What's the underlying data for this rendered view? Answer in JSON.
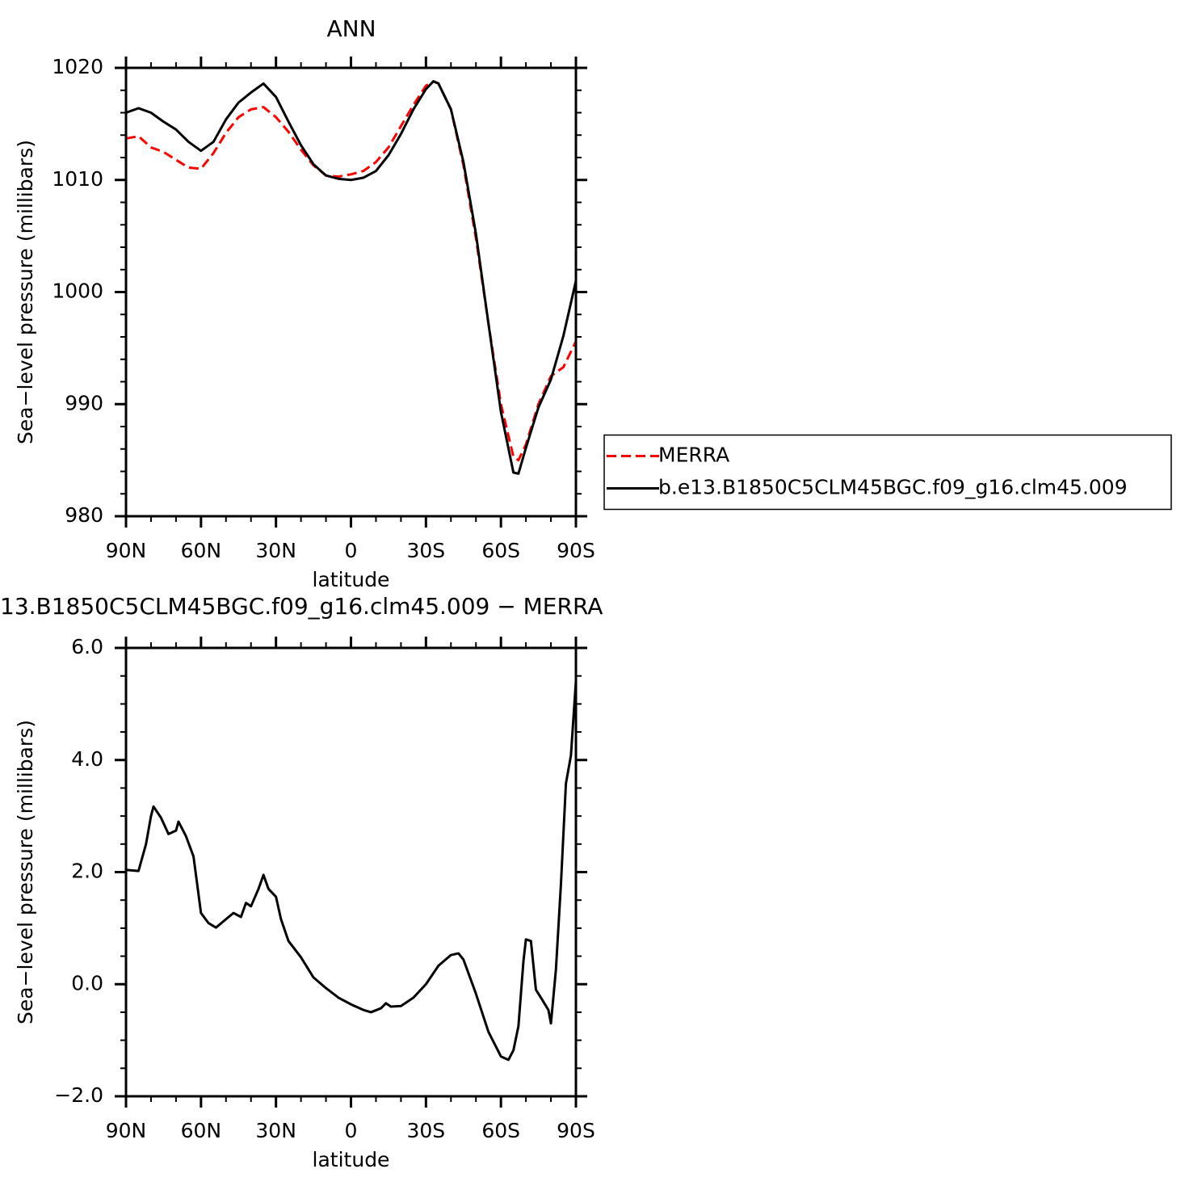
{
  "chart_data": [
    {
      "type": "line",
      "title": "ANN",
      "xlabel": "latitude",
      "ylabel": "Sea−level pressure (millibars)",
      "x": [
        90,
        85,
        80,
        75,
        70,
        65,
        60,
        55,
        50,
        45,
        40,
        35,
        30,
        25,
        20,
        15,
        10,
        5,
        0,
        -5,
        -10,
        -15,
        -20,
        -25,
        -30,
        -33,
        -35,
        -40,
        -45,
        -50,
        -55,
        -60,
        -65,
        -67,
        -70,
        -75,
        -80,
        -85,
        -90
      ],
      "series": [
        {
          "name": "MERRA",
          "color": "#ff0000",
          "dash": true,
          "values": [
            1013.7,
            1013.9,
            1012.9,
            1012.5,
            1011.8,
            1011.1,
            1011.0,
            1012.4,
            1014.2,
            1015.6,
            1016.3,
            1016.5,
            1015.6,
            1014.3,
            1012.7,
            1011.3,
            1010.4,
            1010.3,
            1010.5,
            1010.8,
            1011.6,
            1012.9,
            1014.8,
            1016.7,
            1018.4,
            1018.8,
            1018.6,
            1016.3,
            1011.3,
            1004.8,
            997.2,
            990.0,
            985.3,
            985.0,
            986.4,
            990.0,
            992.5,
            993.3,
            995.6
          ]
        },
        {
          "name": "b.e13.B1850C5CLM45BGC.f09_g16.clm45.009",
          "color": "#000000",
          "dash": false,
          "values": [
            1016.0,
            1016.4,
            1016.0,
            1015.2,
            1014.5,
            1013.4,
            1012.6,
            1013.4,
            1015.4,
            1016.9,
            1017.8,
            1018.6,
            1017.4,
            1015.2,
            1013.1,
            1011.4,
            1010.4,
            1010.1,
            1010.0,
            1010.2,
            1010.8,
            1012.2,
            1014.1,
            1016.3,
            1018.1,
            1018.8,
            1018.6,
            1016.3,
            1011.6,
            1005.2,
            997.2,
            989.3,
            983.9,
            983.8,
            986.1,
            989.7,
            992.2,
            996.1,
            1001.0
          ]
        }
      ],
      "xlim": [
        90,
        -90
      ],
      "xticks": [
        {
          "value": 90,
          "label": "90N"
        },
        {
          "value": 60,
          "label": "60N"
        },
        {
          "value": 30,
          "label": "30N"
        },
        0,
        {
          "value": -30,
          "label": "30S"
        },
        {
          "value": -60,
          "label": "60S"
        },
        {
          "value": -90,
          "label": "90S"
        }
      ],
      "xminorticks": [
        80,
        70,
        50,
        40,
        20,
        10,
        -10,
        -20,
        -40,
        -50,
        -70,
        -80
      ],
      "ylim": [
        980,
        1020
      ],
      "yticks": [
        980,
        990,
        1000,
        1010,
        1020
      ],
      "yminorticks": [
        982,
        984,
        986,
        988,
        992,
        994,
        996,
        998,
        1002,
        1004,
        1006,
        1008,
        1012,
        1014,
        1016,
        1018
      ],
      "legend": "right"
    },
    {
      "type": "line",
      "title": "13.B1850C5CLM45BGC.f09_g16.clm45.009 − MERRA",
      "xlabel": "latitude",
      "ylabel": "Sea−level pressure (millibars)",
      "x": [
        90,
        85,
        82,
        80,
        79,
        76,
        73,
        70,
        69,
        66,
        63,
        60,
        57,
        54,
        50,
        47,
        44,
        42,
        40,
        37,
        35,
        33,
        30,
        28,
        25,
        20,
        15,
        10,
        5,
        0,
        -5,
        -8,
        -12,
        -14,
        -16,
        -20,
        -25,
        -30,
        -35,
        -40,
        -43,
        -45,
        -50,
        -55,
        -60,
        -63,
        -65,
        -67,
        -69,
        -70,
        -72,
        -74,
        -76,
        -79,
        -80,
        -82,
        -84,
        -86,
        -88,
        -90
      ],
      "series": [
        {
          "name": null,
          "color": "#000000",
          "dash": false,
          "values": [
            2.04,
            2.02,
            2.5,
            3.0,
            3.17,
            2.97,
            2.68,
            2.74,
            2.9,
            2.64,
            2.28,
            1.27,
            1.09,
            1.01,
            1.16,
            1.27,
            1.2,
            1.45,
            1.39,
            1.7,
            1.95,
            1.7,
            1.56,
            1.16,
            0.77,
            0.48,
            0.12,
            -0.07,
            -0.24,
            -0.36,
            -0.46,
            -0.5,
            -0.43,
            -0.34,
            -0.4,
            -0.39,
            -0.24,
            0.0,
            0.33,
            0.52,
            0.55,
            0.44,
            -0.17,
            -0.85,
            -1.29,
            -1.35,
            -1.18,
            -0.75,
            0.41,
            0.8,
            0.77,
            -0.1,
            -0.24,
            -0.46,
            -0.7,
            0.26,
            1.78,
            3.58,
            4.08,
            5.41
          ]
        }
      ],
      "xlim": [
        90,
        -90
      ],
      "xticks": [
        {
          "value": 90,
          "label": "90N"
        },
        {
          "value": 60,
          "label": "60N"
        },
        {
          "value": 30,
          "label": "30N"
        },
        0,
        {
          "value": -30,
          "label": "30S"
        },
        {
          "value": -60,
          "label": "60S"
        },
        {
          "value": -90,
          "label": "90S"
        }
      ],
      "xminorticks": [
        80,
        70,
        50,
        40,
        20,
        10,
        -10,
        -20,
        -40,
        -50,
        -70,
        -80
      ],
      "ylim": [
        -2,
        6
      ],
      "yticks": [
        {
          "value": -2,
          "label": "−2.0"
        },
        {
          "value": 0,
          "label": "0.0"
        },
        {
          "value": 2,
          "label": "2.0"
        },
        {
          "value": 4,
          "label": "4.0"
        },
        {
          "value": 6,
          "label": "6.0"
        }
      ],
      "yminorticks": [
        -1.5,
        -1,
        -0.5,
        0.5,
        1,
        1.5,
        2.5,
        3,
        3.5,
        4.5,
        5,
        5.5
      ]
    }
  ]
}
